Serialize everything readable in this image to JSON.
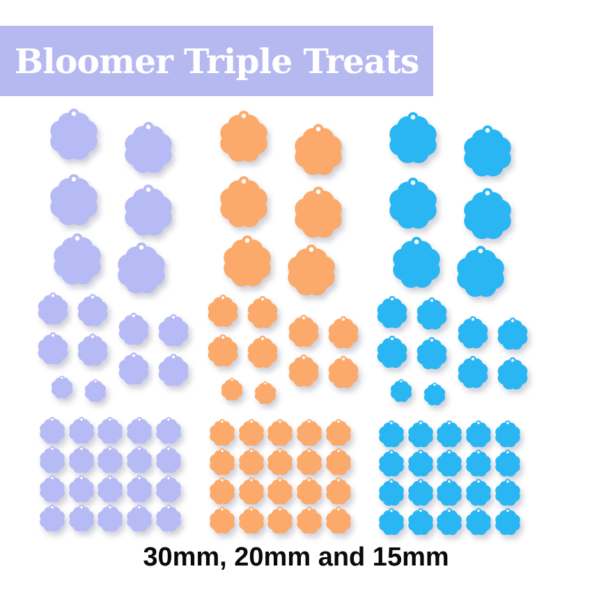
{
  "title": {
    "text": "Bloomer Triple Treats"
  },
  "caption": {
    "text": "30mm, 20mm and 15mm"
  },
  "theme": {
    "page_bg": "#ffffff",
    "banner_bg": "#b6b9f0",
    "title_color": "#ffffff",
    "caption_color": "#0a0a0a"
  },
  "flower_colors": [
    {
      "name": "lavender",
      "hex": "#b6baf5"
    },
    {
      "name": "orange",
      "hex": "#fbaa6b"
    },
    {
      "name": "blue",
      "hex": "#29b6f2"
    }
  ],
  "sizes": {
    "large_mm": 30,
    "medium_mm": 20,
    "small_mm": 15
  },
  "per_color_counts": {
    "large_30mm": 6,
    "medium_20mm": 8,
    "small_pair": 2,
    "small_15mm_grid": 20
  }
}
